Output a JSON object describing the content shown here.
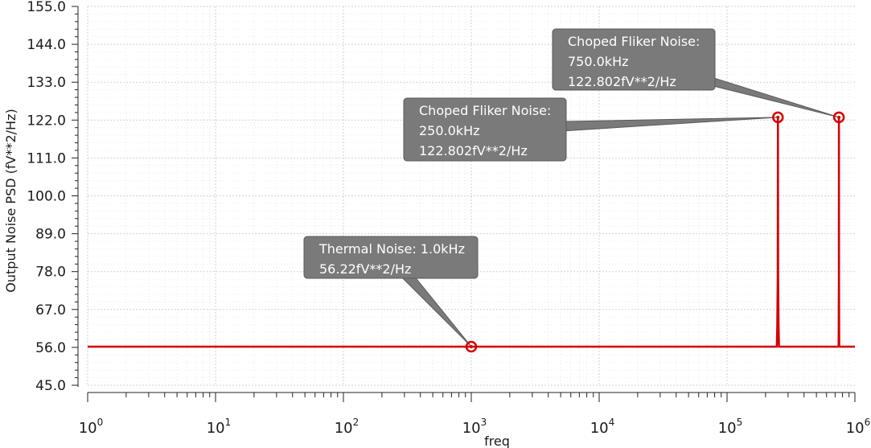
{
  "chart_data": {
    "type": "line",
    "xlabel": "freq",
    "ylabel": "Output Noise PSD (fV**2/Hz)",
    "xscale": "log",
    "xlim": [
      1,
      1000000
    ],
    "x_ticks": [
      {
        "base": "10",
        "exp": "0"
      },
      {
        "base": "10",
        "exp": "1"
      },
      {
        "base": "10",
        "exp": "2"
      },
      {
        "base": "10",
        "exp": "3"
      },
      {
        "base": "10",
        "exp": "4"
      },
      {
        "base": "10",
        "exp": "5"
      },
      {
        "base": "10",
        "exp": "6"
      }
    ],
    "ylim": [
      45.0,
      155.0
    ],
    "y_ticks": [
      "45.0",
      "56.0",
      "67.0",
      "78.0",
      "89.0",
      "100.0",
      "111.0",
      "122.0",
      "133.0",
      "144.0",
      "155.0"
    ],
    "grid": true,
    "series": [
      {
        "color": "#d40000",
        "baseline": 56.22,
        "x": [
          1,
          245000,
          247000,
          249000,
          250000,
          251000,
          253000,
          255000,
          745000,
          747000,
          749000,
          750000,
          751000,
          753000,
          755000,
          1000000
        ],
        "y": [
          56.22,
          56.22,
          62.0,
          76.0,
          122.802,
          76.0,
          62.0,
          56.22,
          56.22,
          62.0,
          76.0,
          122.802,
          76.0,
          62.0,
          56.22,
          56.22
        ]
      }
    ],
    "markers": [
      {
        "x": 1000,
        "y": 56.22,
        "lines": [
          "Thermal Noise: 1.0kHz",
          "56.22fV**2/Hz"
        ]
      },
      {
        "x": 250000,
        "y": 122.802,
        "lines": [
          "Choped Fliker Noise:",
          "250.0kHz",
          "122.802fV**2/Hz"
        ]
      },
      {
        "x": 750000,
        "y": 122.802,
        "lines": [
          "Choped Fliker Noise:",
          "750.0kHz",
          "122.802fV**2/Hz"
        ]
      }
    ]
  }
}
